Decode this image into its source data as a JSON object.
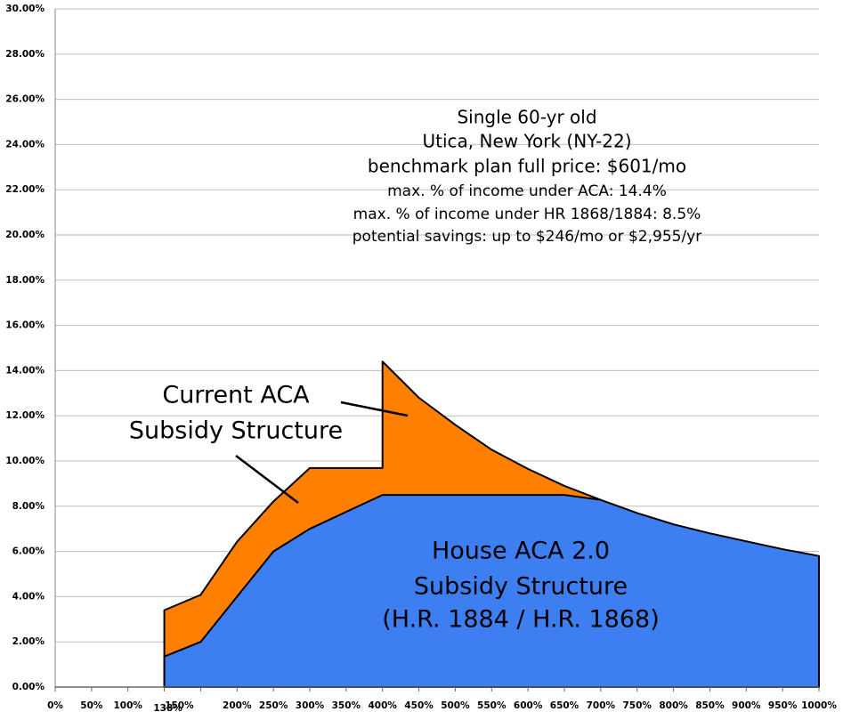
{
  "chart_data": {
    "type": "area",
    "categories": [
      "0%",
      "50%",
      "100%",
      "138%",
      "150%",
      "200%",
      "250%",
      "300%",
      "350%",
      "400%",
      "450%",
      "500%",
      "550%",
      "600%",
      "650%",
      "700%",
      "750%",
      "800%",
      "850%",
      "900%",
      "950%",
      "1000%"
    ],
    "series": [
      {
        "color": "#ff7f00",
        "x": [
          "138%",
          "150%",
          "200%",
          "250%",
          "300%",
          "350%",
          "400%",
          "400%",
          "450%",
          "500%",
          "550%",
          "600%",
          "650%",
          "700%"
        ],
        "values": [
          3.4,
          4.08,
          6.43,
          8.21,
          9.69,
          9.69,
          9.69,
          14.4,
          12.8,
          11.6,
          10.5,
          9.65,
          8.9,
          8.28
        ]
      },
      {
        "color": "#3d7ff0",
        "values": [
          null,
          null,
          null,
          1.35,
          2.0,
          4.0,
          6.0,
          7.0,
          7.75,
          8.5,
          8.5,
          8.5,
          8.5,
          8.5,
          8.5,
          8.28,
          7.7,
          7.2,
          6.8,
          6.45,
          6.1,
          5.8
        ]
      }
    ],
    "ylim": [
      0,
      30
    ],
    "yticks": [
      {
        "value": 0,
        "label": "0.00%"
      },
      {
        "value": 2,
        "label": "2.00%"
      },
      {
        "value": 4,
        "label": "4.00%"
      },
      {
        "value": 6,
        "label": "6.00%"
      },
      {
        "value": 8,
        "label": "8.00%"
      },
      {
        "value": 10,
        "label": "10.00%"
      },
      {
        "value": 12,
        "label": "12.00%"
      },
      {
        "value": 14,
        "label": "14.00%"
      },
      {
        "value": 16,
        "label": "16.00%"
      },
      {
        "value": 18,
        "label": "18.00%"
      },
      {
        "value": 20,
        "label": "20.00%"
      },
      {
        "value": 22,
        "label": "22.00%"
      },
      {
        "value": 24,
        "label": "24.00%"
      },
      {
        "value": 26,
        "label": "26.00%"
      },
      {
        "value": 28,
        "label": "28.00%"
      },
      {
        "value": 30,
        "label": "30.00%"
      }
    ],
    "grid": true,
    "info_lines": [
      "Single 60-yr old",
      "Utica, New York (NY-22)",
      "benchmark plan full price: $601/mo",
      "max. % of income under ACA: 14.4%",
      "max. % of income under HR 1868/1884: 8.5%",
      "potential savings: up to $246/mo or $2,955/yr"
    ],
    "annotations": [
      {
        "lines": [
          "Current ACA",
          "Subsidy Structure"
        ]
      },
      {
        "lines": [
          "House ACA 2.0",
          "Subsidy Structure",
          "(H.R. 1884 / H.R. 1868)"
        ]
      }
    ]
  }
}
